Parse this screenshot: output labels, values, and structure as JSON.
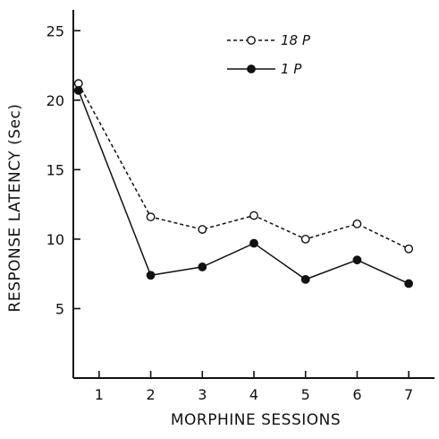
{
  "chart_data": {
    "type": "line",
    "title": "",
    "xlabel": "MORPHINE SESSIONS",
    "ylabel": "RESPONSE LATENCY (Sec)",
    "x": [
      1,
      2,
      3,
      4,
      5,
      6,
      7
    ],
    "x_tick_labels": [
      "1",
      "2",
      "3",
      "4",
      "5",
      "6",
      "7"
    ],
    "y_tick_values": [
      5,
      10,
      15,
      20,
      25
    ],
    "y_tick_labels": [
      "5",
      "10",
      "15",
      "20",
      "25"
    ],
    "xlim": [
      0.5,
      7.5
    ],
    "ylim": [
      0,
      26.5
    ],
    "grid": false,
    "legend_position": "top-right",
    "series": [
      {
        "name": "18 P",
        "line_style": "dashed",
        "marker": "open-circle",
        "points": [
          [
            0.6,
            21.2
          ],
          [
            2,
            11.6
          ],
          [
            3,
            10.7
          ],
          [
            4,
            11.7
          ],
          [
            5,
            10.0
          ],
          [
            6,
            11.1
          ],
          [
            7,
            9.3
          ]
        ]
      },
      {
        "name": "1 P",
        "line_style": "solid",
        "marker": "filled-circle",
        "points": [
          [
            0.6,
            20.7
          ],
          [
            2,
            7.4
          ],
          [
            3,
            8.0
          ],
          [
            4,
            9.7
          ],
          [
            5,
            7.1
          ],
          [
            6,
            8.5
          ],
          [
            7,
            6.8
          ]
        ]
      }
    ],
    "colors": {
      "ink": "#111111",
      "background": "#ffffff"
    }
  }
}
